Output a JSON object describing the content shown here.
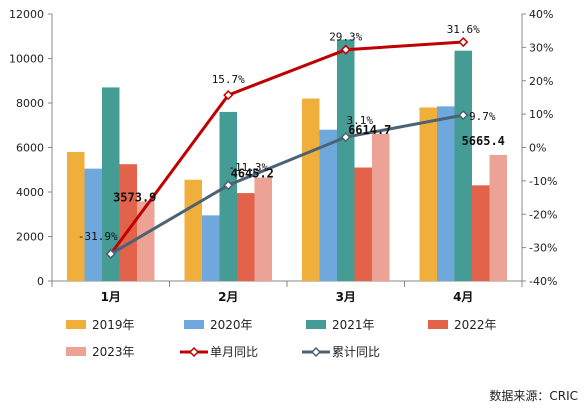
{
  "chart_data": {
    "type": "bar",
    "categories": [
      "1月",
      "2月",
      "3月",
      "4月"
    ],
    "left_axis": {
      "ylim": [
        0,
        12000
      ],
      "ticks": [
        "0",
        "2000",
        "4000",
        "6000",
        "8000",
        "10000",
        "12000"
      ]
    },
    "right_axis": {
      "ylim": [
        -40,
        40
      ],
      "ticks": [
        "-40%",
        "-30%",
        "-20%",
        "-10%",
        "0%",
        "10%",
        "20%",
        "30%",
        "40%"
      ]
    },
    "bar_series": [
      {
        "name": "2019年",
        "color": "#F0AE3A",
        "values": [
          5800,
          4550,
          8200,
          7800
        ]
      },
      {
        "name": "2020年",
        "color": "#6FA8DC",
        "values": [
          5050,
          2950,
          6800,
          7850
        ]
      },
      {
        "name": "2021年",
        "color": "#449C94",
        "values": [
          8700,
          7600,
          10850,
          10350
        ]
      },
      {
        "name": "2022年",
        "color": "#E2634A",
        "values": [
          5250,
          3950,
          5100,
          4300
        ]
      },
      {
        "name": "2023年",
        "color": "#EDA296",
        "values": [
          3573.9,
          4645.2,
          6614.7,
          5665.4
        ]
      }
    ],
    "bar_labels": [
      "3573.9",
      "4645.2",
      "6614.7",
      "5665.4"
    ],
    "line_series": [
      {
        "name": "单月同比",
        "color": "#C00000",
        "values": [
          -31.9,
          15.7,
          29.3,
          31.6
        ],
        "labels": [
          "-31.9%",
          "15.7%",
          "29.3%",
          "31.6%"
        ]
      },
      {
        "name": "累计同比",
        "color": "#4A6274",
        "values": [
          -31.9,
          -11.3,
          3.1,
          9.7
        ],
        "labels": [
          "",
          "-11.3%",
          "3.1%",
          "9.7%"
        ]
      }
    ],
    "grid": false,
    "legend_position": "bottom"
  },
  "source_text": "数据来源：CRIC"
}
